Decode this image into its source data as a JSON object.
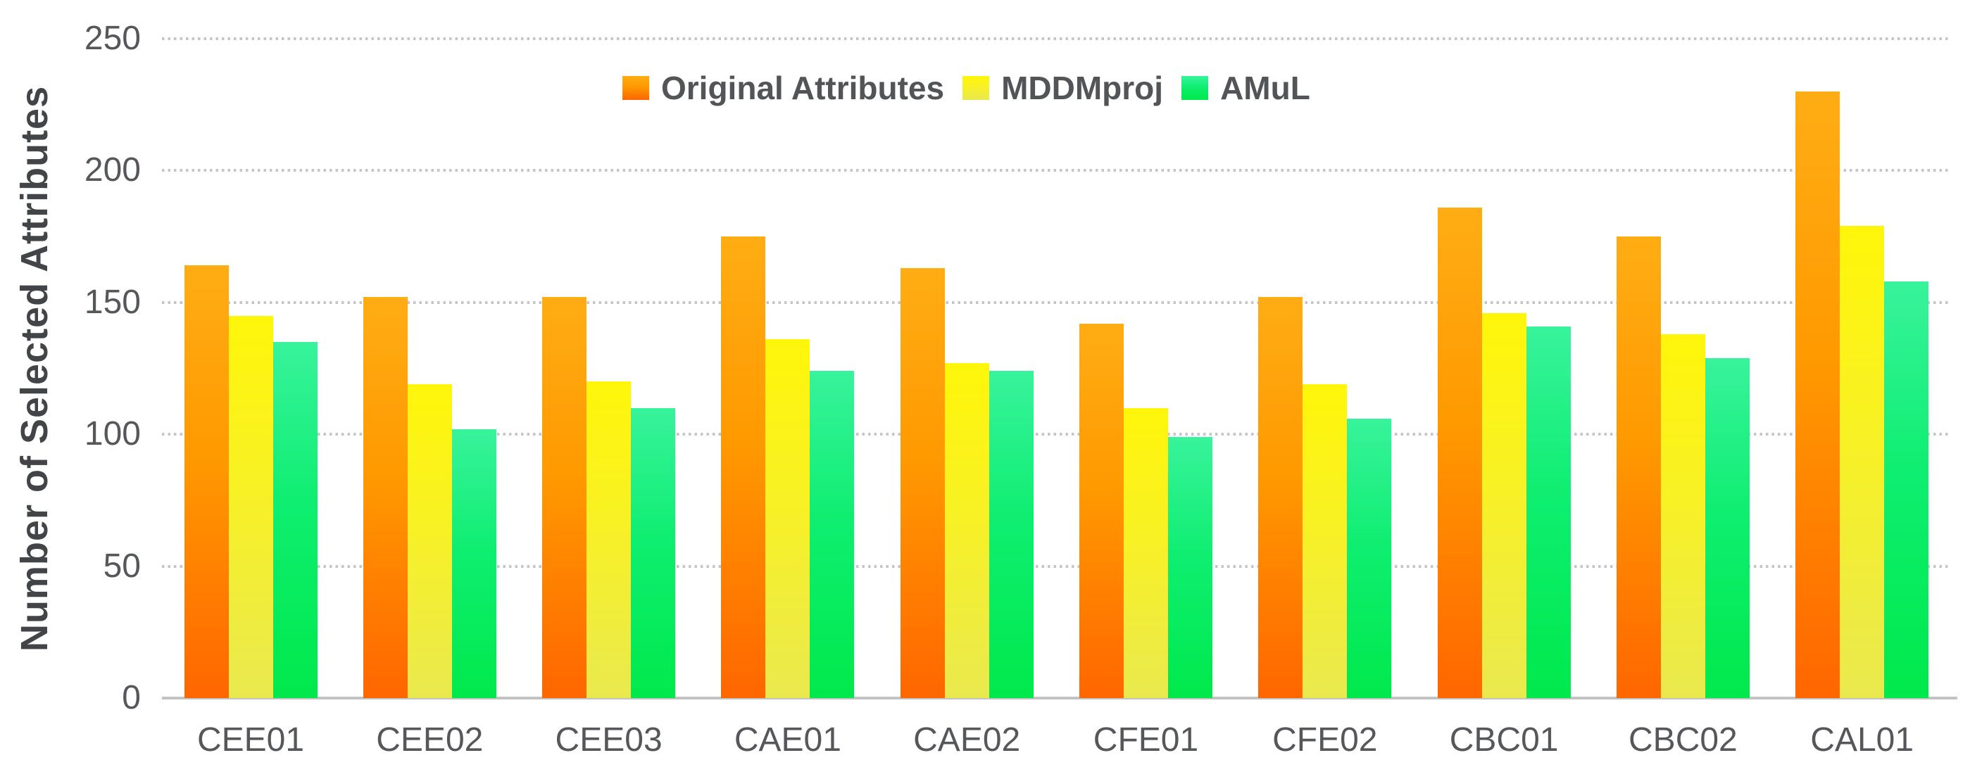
{
  "chart_data": {
    "type": "bar",
    "title": "",
    "xlabel": "",
    "ylabel": "Number of Selected Attributes",
    "ylim": [
      0,
      250
    ],
    "yticks": [
      0,
      50,
      100,
      150,
      200,
      250
    ],
    "grid": "horizontal dotted gridlines at each y tick, solid baseline at 0",
    "legend_position": "top-center",
    "categories": [
      "CEE01",
      "CEE02",
      "CEE03",
      "CAE01",
      "CAE02",
      "CFE01",
      "CFE02",
      "CBC01",
      "CBC02",
      "CAL01"
    ],
    "series": [
      {
        "name": "Original Attributes",
        "color_top": "#FFAD14",
        "color_mid": "#FF9900",
        "color_bottom": "#FF6600",
        "values": [
          164,
          152,
          152,
          175,
          163,
          142,
          152,
          186,
          175,
          230
        ]
      },
      {
        "name": "MDDMproj",
        "color_top": "#FFF60A",
        "color_mid": "#F8F125",
        "color_bottom": "#E9E94F",
        "values": [
          145,
          119,
          120,
          136,
          127,
          110,
          119,
          146,
          138,
          179
        ]
      },
      {
        "name": "AMuL",
        "color_top": "#38F39C",
        "color_mid": "#0FEE71",
        "color_bottom": "#00E94B",
        "values": [
          135,
          102,
          110,
          124,
          124,
          99,
          106,
          141,
          129,
          158
        ]
      }
    ]
  },
  "colors": {
    "background": "#FFFFFF",
    "tick_text": "#55575A",
    "axis_title_text": "#434447",
    "legend_text": "#525457",
    "gridline": "#C6C6C6",
    "baseline": "#C3C3C3"
  }
}
